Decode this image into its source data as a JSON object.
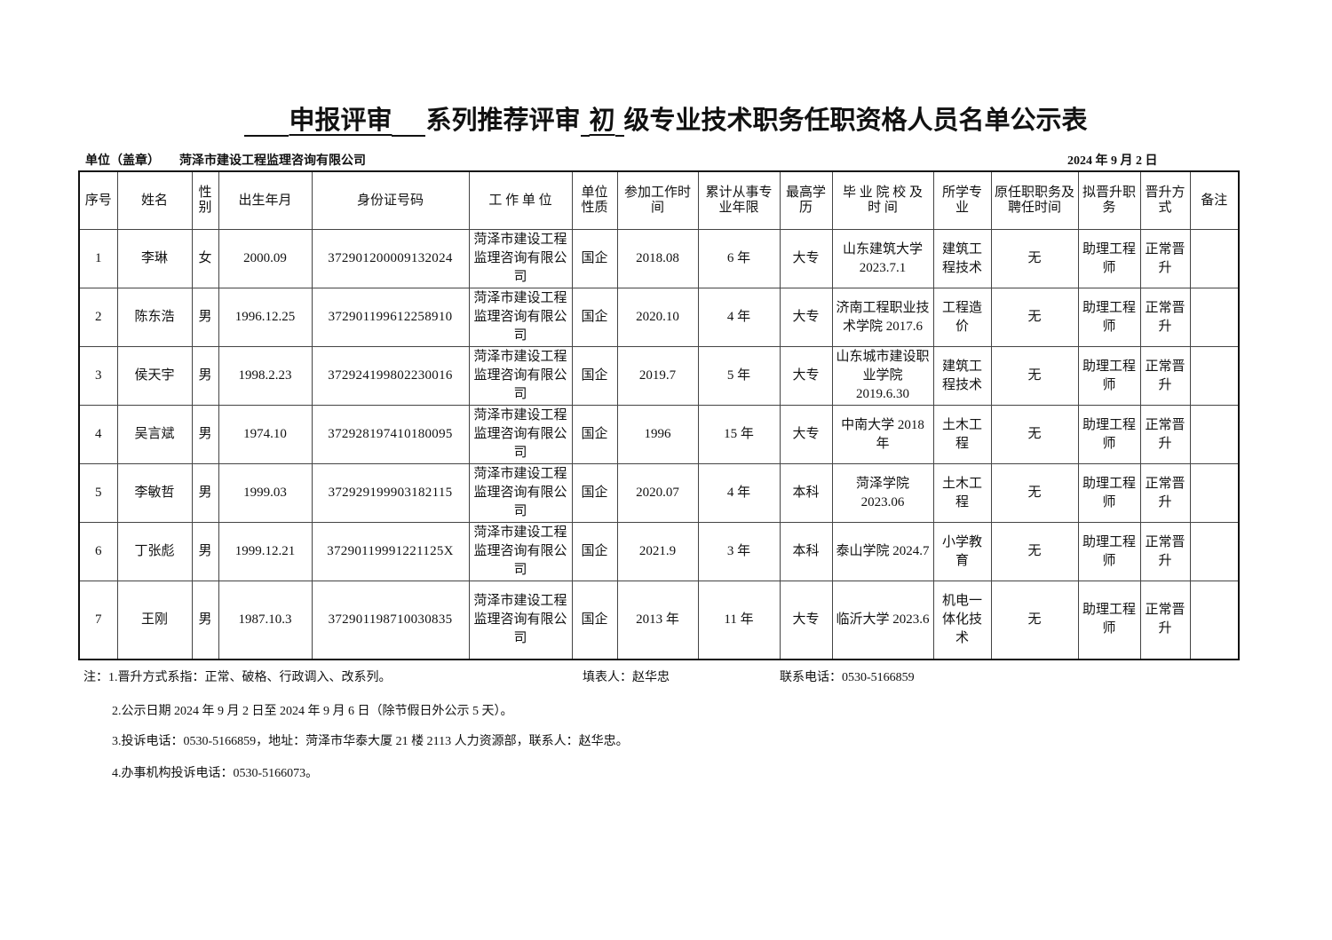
{
  "title": {
    "part1": "申报评审",
    "part2": "系列推荐评审",
    "part3": "初",
    "part4": "级专业技术职务任职资格人员名单公示表"
  },
  "unit": {
    "label": "单位（盖章）",
    "name": "菏泽市建设工程监理咨询有限公司"
  },
  "date": "2024 年  9 月  2 日",
  "table": {
    "headers": [
      "序号",
      "姓名",
      "性别",
      "出生年月",
      "身份证号码",
      "工 作 单 位",
      "单位性质",
      "参加工作时间",
      "累计从事专业年限",
      "最高学历",
      "毕 业 院 校 及 时 间",
      "所学专业",
      "原任职职务及聘任时间",
      "拟晋升职务",
      "晋升方式",
      "备注"
    ],
    "rows": [
      [
        "1",
        "李琳",
        "女",
        "2000.09",
        "372901200009132024",
        "菏泽市建设工程监理咨询有限公司",
        "国企",
        "2018.08",
        "6 年",
        "大专",
        "山东建筑大学 2023.7.1",
        "建筑工程技术",
        "无",
        "助理工程师",
        "正常晋升",
        ""
      ],
      [
        "2",
        "陈东浩",
        "男",
        "1996.12.25",
        "372901199612258910",
        "菏泽市建设工程监理咨询有限公司",
        "国企",
        "2020.10",
        "4 年",
        "大专",
        "济南工程职业技术学院 2017.6",
        "工程造价",
        "无",
        "助理工程师",
        "正常晋升",
        ""
      ],
      [
        "3",
        "侯天宇",
        "男",
        "1998.2.23",
        "372924199802230016",
        "菏泽市建设工程监理咨询有限公司",
        "国企",
        "2019.7",
        "5 年",
        "大专",
        "山东城市建设职业学院 2019.6.30",
        "建筑工程技术",
        "无",
        "助理工程师",
        "正常晋升",
        ""
      ],
      [
        "4",
        "吴言斌",
        "男",
        "1974.10",
        "372928197410180095",
        "菏泽市建设工程监理咨询有限公司",
        "国企",
        "1996",
        "15 年",
        "大专",
        "中南大学 2018 年",
        "土木工程",
        "无",
        "助理工程师",
        "正常晋升",
        ""
      ],
      [
        "5",
        "李敏哲",
        "男",
        "1999.03",
        "372929199903182115",
        "菏泽市建设工程监理咨询有限公司",
        "国企",
        "2020.07",
        "4 年",
        "本科",
        "菏泽学院 2023.06",
        "土木工程",
        "无",
        "助理工程师",
        "正常晋升",
        ""
      ],
      [
        "6",
        "丁张彪",
        "男",
        "1999.12.21",
        "37290119991221125X",
        "菏泽市建设工程监理咨询有限公司",
        "国企",
        "2021.9",
        "3 年",
        "本科",
        "泰山学院 2024.7",
        "小学教育",
        "无",
        "助理工程师",
        "正常晋升",
        ""
      ],
      [
        "7",
        "王刚",
        "男",
        "1987.10.3",
        "372901198710030835",
        "菏泽市建设工程监理咨询有限公司",
        "国企",
        "2013 年",
        "11 年",
        "大专",
        "临沂大学 2023.6",
        "机电一体化技术",
        "无",
        "助理工程师",
        "正常晋升",
        ""
      ]
    ]
  },
  "notes": {
    "note1": "注：1.晋升方式系指：正常、破格、行政调入、改系列。",
    "filler": "填表人：赵华忠",
    "phone": "联系电话：0530-5166859",
    "note2": "2.公示日期 2024 年 9 月 2 日至 2024 年 9 月 6 日（除节假日外公示 5 天）。",
    "note3": "3.投诉电话：0530-5166859，地址：菏泽市华泰大厦 21 楼 2113 人力资源部，联系人：赵华忠。",
    "note4": "4.办事机构投诉电话：0530-5166073。"
  }
}
